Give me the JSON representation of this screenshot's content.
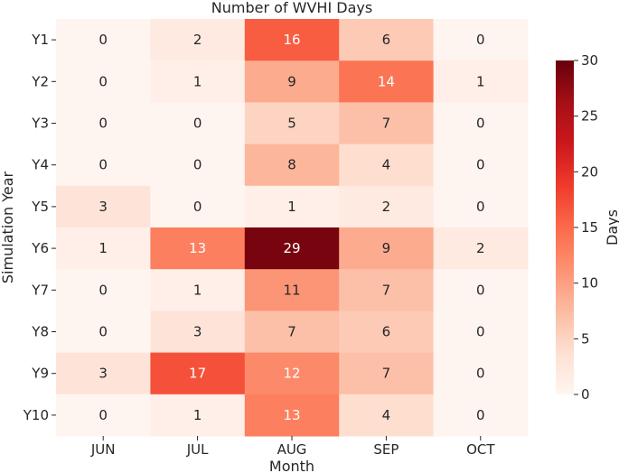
{
  "chart_data": {
    "type": "heatmap",
    "title": "Number of WVHI Days",
    "xlabel": "Month",
    "ylabel": "Simulation Year",
    "colorbar_label": "Days",
    "x": [
      "JUN",
      "JUL",
      "AUG",
      "SEP",
      "OCT"
    ],
    "y": [
      "Y1",
      "Y2",
      "Y3",
      "Y4",
      "Y5",
      "Y6",
      "Y7",
      "Y8",
      "Y9",
      "Y10"
    ],
    "values": [
      [
        0,
        2,
        16,
        6,
        0
      ],
      [
        0,
        1,
        9,
        14,
        1
      ],
      [
        0,
        0,
        5,
        7,
        0
      ],
      [
        0,
        0,
        8,
        4,
        0
      ],
      [
        3,
        0,
        1,
        2,
        0
      ],
      [
        1,
        13,
        29,
        9,
        2
      ],
      [
        0,
        1,
        11,
        7,
        0
      ],
      [
        0,
        3,
        7,
        6,
        0
      ],
      [
        3,
        17,
        12,
        7,
        0
      ],
      [
        0,
        1,
        13,
        4,
        0
      ]
    ],
    "vmin": 0,
    "vmax": 30,
    "colorbar_ticks": [
      0,
      5,
      10,
      15,
      20,
      25,
      30
    ],
    "colormap": "Reds",
    "colormap_stops": [
      "#fff5f0",
      "#fee0d2",
      "#fcbba1",
      "#fc9272",
      "#fb6a4a",
      "#ef3b2c",
      "#cb181d",
      "#a50f15",
      "#67000d"
    ],
    "annotation_light_color": "#ffffff",
    "annotation_dark_color": "#262626"
  }
}
